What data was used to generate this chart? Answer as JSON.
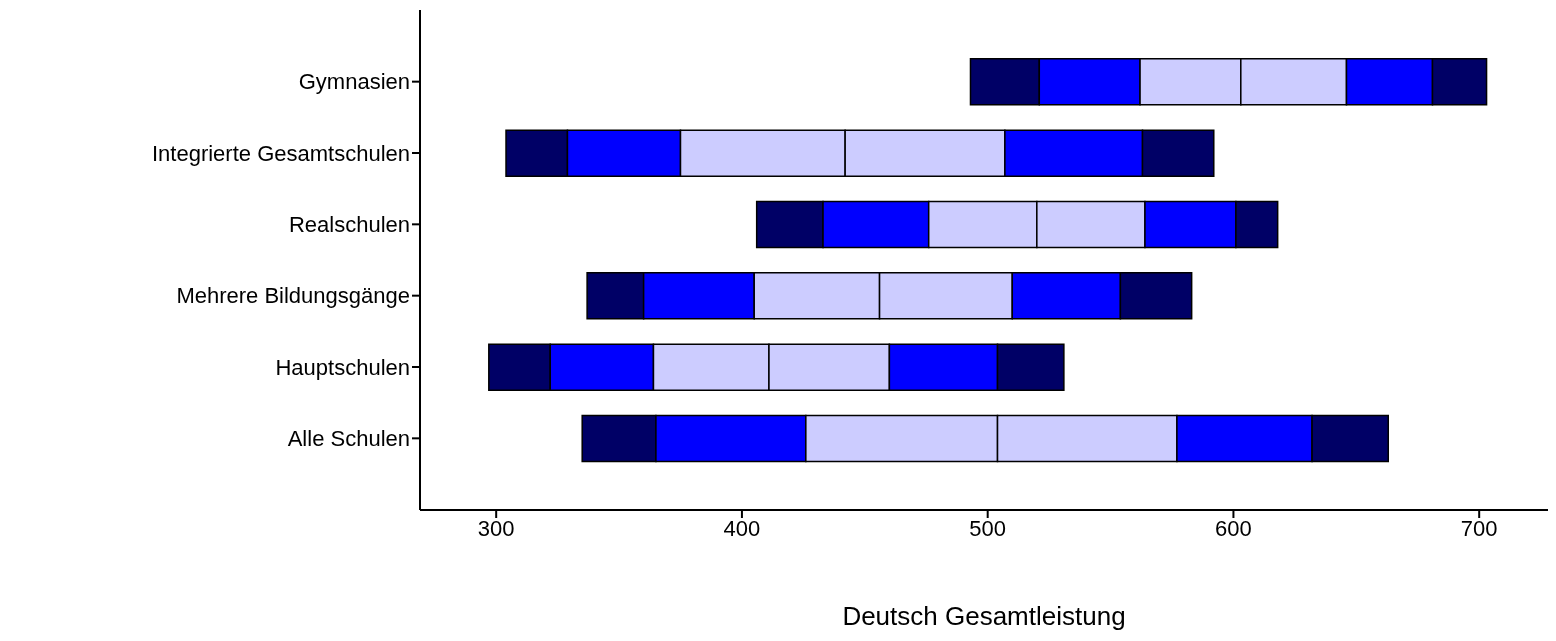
{
  "chart_data": {
    "type": "bar",
    "orientation": "horizontal",
    "xlabel": "Deutsch Gesamtleistung",
    "categories": [
      "Gymnasien",
      "Integrierte Gesamtschulen",
      "Realschulen",
      "Mehrere Bildungsgänge",
      "Hauptschulen",
      "Alle Schulen"
    ],
    "series": [
      {
        "color": "#000066",
        "base": [
          493,
          304,
          406,
          337,
          297,
          335
        ],
        "values": [
          28,
          25,
          27,
          23,
          25,
          30
        ]
      },
      {
        "color": "#0000ff",
        "base": [
          521,
          329,
          433,
          360,
          322,
          365
        ],
        "values": [
          41,
          46,
          43,
          45,
          42,
          61
        ]
      },
      {
        "color": "#ccccff",
        "base": [
          562,
          375,
          476,
          405,
          364,
          426
        ],
        "values": [
          41,
          67,
          44,
          51,
          47,
          78
        ]
      },
      {
        "color": "#ccccff",
        "base": [
          603,
          442,
          520,
          456,
          411,
          504
        ],
        "values": [
          43,
          65,
          44,
          54,
          49,
          73
        ]
      },
      {
        "color": "#0000ff",
        "base": [
          646,
          507,
          564,
          510,
          460,
          577
        ],
        "values": [
          35,
          56,
          37,
          44,
          44,
          55
        ]
      },
      {
        "color": "#000066",
        "base": [
          681,
          563,
          601,
          554,
          504,
          632
        ],
        "values": [
          22,
          29,
          17,
          29,
          27,
          31
        ]
      }
    ],
    "xlim": [
      269,
      728
    ],
    "xticks": [
      300,
      400,
      500,
      600,
      700
    ],
    "grid": false,
    "legend": false
  }
}
